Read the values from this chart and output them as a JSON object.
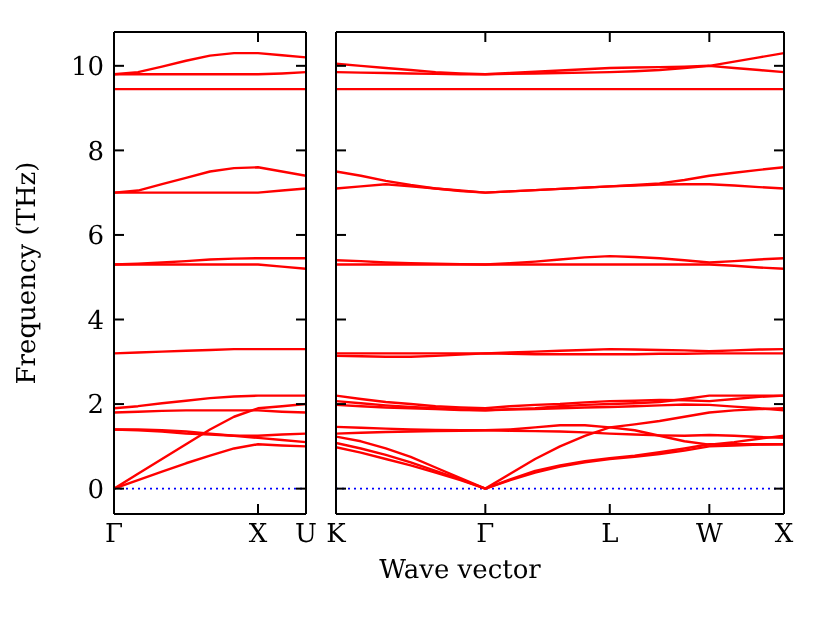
{
  "chart_data": [
    {
      "type": "line",
      "ylabel": "Frequency (THz)",
      "categories": [
        "Γ",
        null,
        null,
        null,
        null,
        null,
        "X",
        null,
        "U"
      ],
      "ylim": [
        -0.6,
        10.8
      ],
      "yticks": [
        0,
        2,
        4,
        6,
        8,
        10
      ],
      "ref_lines": [
        {
          "axis": "y",
          "value": 0,
          "color": "#0000ff",
          "line_style": "dotted"
        }
      ],
      "series": [
        {
          "color": "#ff0000",
          "values": [
            0,
            0.2,
            0.4,
            0.6,
            0.78,
            0.95,
            1.05,
            1.02,
            1.0
          ]
        },
        {
          "color": "#ff0000",
          "values": [
            0,
            0.35,
            0.7,
            1.05,
            1.4,
            1.7,
            1.9,
            1.95,
            2.0
          ]
        },
        {
          "color": "#ff0000",
          "values": [
            1.4,
            1.4,
            1.38,
            1.35,
            1.3,
            1.25,
            1.2,
            1.15,
            1.1
          ]
        },
        {
          "color": "#ff0000",
          "values": [
            1.4,
            1.38,
            1.35,
            1.3,
            1.28,
            1.25,
            1.25,
            1.28,
            1.3
          ]
        },
        {
          "color": "#ff0000",
          "values": [
            1.8,
            1.82,
            1.84,
            1.85,
            1.85,
            1.85,
            1.85,
            1.82,
            1.8
          ]
        },
        {
          "color": "#ff0000",
          "values": [
            1.9,
            1.95,
            2.02,
            2.08,
            2.14,
            2.18,
            2.2,
            2.2,
            2.2
          ]
        },
        {
          "color": "#ff0000",
          "values": [
            3.2,
            3.22,
            3.24,
            3.26,
            3.28,
            3.3,
            3.3,
            3.3,
            3.3
          ]
        },
        {
          "color": "#ff0000",
          "values": [
            5.3,
            5.3,
            5.3,
            5.3,
            5.3,
            5.3,
            5.3,
            5.25,
            5.2
          ]
        },
        {
          "color": "#ff0000",
          "values": [
            5.3,
            5.32,
            5.35,
            5.38,
            5.42,
            5.44,
            5.45,
            5.45,
            5.45
          ]
        },
        {
          "color": "#ff0000",
          "values": [
            7.0,
            7.0,
            7.0,
            7.0,
            7.0,
            7.0,
            7.0,
            7.05,
            7.1
          ]
        },
        {
          "color": "#ff0000",
          "values": [
            7.0,
            7.05,
            7.2,
            7.35,
            7.5,
            7.58,
            7.6,
            7.5,
            7.4
          ]
        },
        {
          "color": "#ff0000",
          "values": [
            9.45,
            9.45,
            9.45,
            9.45,
            9.45,
            9.45,
            9.45,
            9.45,
            9.45
          ]
        },
        {
          "color": "#ff0000",
          "values": [
            9.8,
            9.8,
            9.8,
            9.8,
            9.8,
            9.8,
            9.8,
            9.82,
            9.85
          ]
        },
        {
          "color": "#ff0000",
          "values": [
            9.8,
            9.85,
            9.98,
            10.12,
            10.24,
            10.3,
            10.3,
            10.25,
            10.2
          ]
        }
      ]
    },
    {
      "type": "line",
      "xlabel": "Wave vector",
      "tick_labels": "x",
      "categories": [
        "K",
        null,
        null,
        null,
        null,
        null,
        "Γ",
        null,
        null,
        null,
        null,
        "L",
        null,
        null,
        null,
        "W",
        null,
        null,
        "X"
      ],
      "ylim": [
        -0.6,
        10.8
      ],
      "yticks": [
        0,
        2,
        4,
        6,
        8,
        10
      ],
      "ref_lines": [
        {
          "axis": "y",
          "value": 0,
          "color": "#0000ff",
          "line_style": "dotted"
        }
      ],
      "series": [
        {
          "color": "#ff0000",
          "values": [
            0.98,
            0.85,
            0.7,
            0.55,
            0.38,
            0.2,
            0,
            0.2,
            0.38,
            0.52,
            0.62,
            0.7,
            0.75,
            0.82,
            0.9,
            1.0,
            1.02,
            1.04,
            1.05
          ]
        },
        {
          "color": "#ff0000",
          "values": [
            1.08,
            0.95,
            0.8,
            0.62,
            0.42,
            0.22,
            0,
            0.22,
            0.42,
            0.55,
            0.65,
            0.72,
            0.78,
            0.86,
            0.95,
            1.05,
            1.05,
            1.05,
            1.05
          ]
        },
        {
          "color": "#ff0000",
          "values": [
            1.23,
            1.12,
            0.95,
            0.75,
            0.5,
            0.25,
            0,
            0.35,
            0.7,
            1.0,
            1.25,
            1.45,
            1.52,
            1.6,
            1.7,
            1.8,
            1.85,
            1.88,
            1.9
          ]
        },
        {
          "color": "#ff0000",
          "values": [
            1.46,
            1.44,
            1.42,
            1.4,
            1.39,
            1.38,
            1.38,
            1.37,
            1.36,
            1.35,
            1.33,
            1.3,
            1.28,
            1.26,
            1.25,
            1.27,
            1.25,
            1.22,
            1.2
          ]
        },
        {
          "color": "#ff0000",
          "values": [
            1.3,
            1.32,
            1.34,
            1.35,
            1.36,
            1.37,
            1.38,
            1.4,
            1.45,
            1.5,
            1.5,
            1.45,
            1.38,
            1.25,
            1.12,
            1.04,
            1.1,
            1.18,
            1.25
          ]
        },
        {
          "color": "#ff0000",
          "values": [
            2.07,
            2.02,
            1.97,
            1.93,
            1.9,
            1.87,
            1.85,
            1.87,
            1.88,
            1.9,
            1.92,
            1.93,
            1.95,
            1.97,
            1.99,
            1.98,
            1.94,
            1.9,
            1.85
          ]
        },
        {
          "color": "#ff0000",
          "values": [
            2.2,
            2.12,
            2.05,
            2.0,
            1.95,
            1.92,
            1.9,
            1.95,
            1.98,
            2.0,
            2.04,
            2.07,
            2.08,
            2.1,
            2.09,
            2.07,
            2.12,
            2.17,
            2.2
          ]
        },
        {
          "color": "#ff0000",
          "values": [
            1.98,
            1.95,
            1.92,
            1.9,
            1.88,
            1.86,
            1.85,
            1.88,
            1.9,
            1.95,
            1.98,
            2.0,
            2.02,
            2.05,
            2.12,
            2.2,
            2.2,
            2.2,
            2.2
          ]
        },
        {
          "color": "#ff0000",
          "values": [
            3.2,
            3.2,
            3.2,
            3.2,
            3.2,
            3.2,
            3.2,
            3.22,
            3.24,
            3.26,
            3.28,
            3.3,
            3.29,
            3.28,
            3.27,
            3.25,
            3.27,
            3.29,
            3.3
          ]
        },
        {
          "color": "#ff0000",
          "values": [
            3.14,
            3.13,
            3.12,
            3.12,
            3.14,
            3.17,
            3.2,
            3.19,
            3.18,
            3.18,
            3.18,
            3.18,
            3.18,
            3.19,
            3.19,
            3.2,
            3.2,
            3.2,
            3.2
          ]
        },
        {
          "color": "#ff0000",
          "values": [
            5.3,
            5.3,
            5.3,
            5.3,
            5.3,
            5.3,
            5.3,
            5.3,
            5.3,
            5.3,
            5.3,
            5.3,
            5.3,
            5.3,
            5.3,
            5.3,
            5.27,
            5.23,
            5.2
          ]
        },
        {
          "color": "#ff0000",
          "values": [
            5.4,
            5.38,
            5.35,
            5.33,
            5.32,
            5.31,
            5.3,
            5.33,
            5.37,
            5.42,
            5.47,
            5.5,
            5.48,
            5.45,
            5.4,
            5.35,
            5.38,
            5.42,
            5.45
          ]
        },
        {
          "color": "#ff0000",
          "values": [
            7.1,
            7.15,
            7.2,
            7.15,
            7.1,
            7.05,
            7.0,
            7.03,
            7.06,
            7.09,
            7.12,
            7.15,
            7.17,
            7.19,
            7.2,
            7.2,
            7.17,
            7.13,
            7.1
          ]
        },
        {
          "color": "#ff0000",
          "values": [
            7.5,
            7.4,
            7.28,
            7.18,
            7.1,
            7.04,
            7.0,
            7.03,
            7.06,
            7.09,
            7.12,
            7.15,
            7.18,
            7.22,
            7.3,
            7.4,
            7.47,
            7.54,
            7.6
          ]
        },
        {
          "color": "#ff0000",
          "values": [
            9.45,
            9.45,
            9.45,
            9.45,
            9.45,
            9.45,
            9.45,
            9.45,
            9.45,
            9.45,
            9.45,
            9.45,
            9.45,
            9.45,
            9.45,
            9.45,
            9.45,
            9.45,
            9.45
          ]
        },
        {
          "color": "#ff0000",
          "values": [
            9.85,
            9.84,
            9.83,
            9.82,
            9.81,
            9.8,
            9.8,
            9.81,
            9.82,
            9.83,
            9.84,
            9.85,
            9.87,
            9.9,
            9.95,
            10.0,
            9.95,
            9.9,
            9.85
          ]
        },
        {
          "color": "#ff0000",
          "values": [
            10.05,
            10.0,
            9.95,
            9.9,
            9.85,
            9.82,
            9.8,
            9.83,
            9.86,
            9.89,
            9.92,
            9.95,
            9.96,
            9.97,
            9.98,
            10.0,
            10.1,
            10.2,
            10.3
          ]
        }
      ]
    }
  ]
}
